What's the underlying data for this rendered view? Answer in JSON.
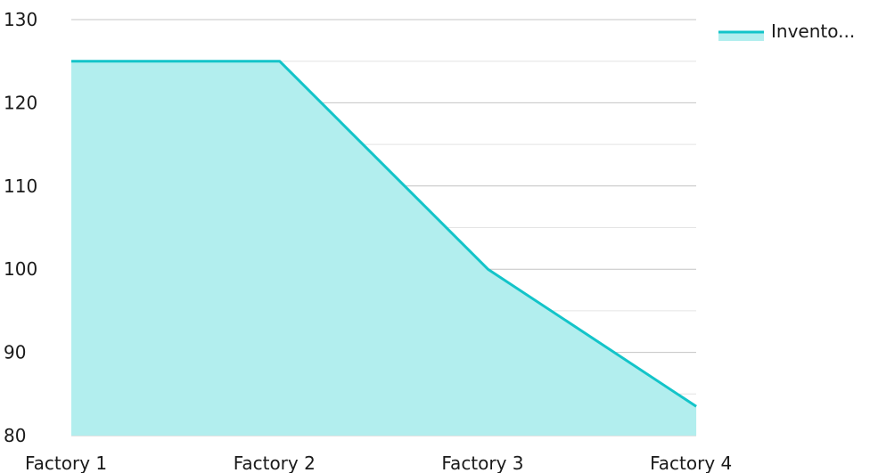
{
  "chart_data": {
    "type": "area",
    "categories": [
      "Factory 1",
      "Factory 2",
      "Factory 3",
      "Factory 4"
    ],
    "series": [
      {
        "name": "Invento...",
        "values": [
          125,
          125,
          100,
          83.5
        ],
        "line_color": "#13c4c9",
        "fill_color": "#b2eeee"
      }
    ],
    "ylim": [
      80,
      130
    ],
    "y_ticks": [
      80,
      90,
      100,
      110,
      120,
      130
    ],
    "minor_grid_step": 5,
    "grid": true,
    "legend_position": "top-right",
    "title": "",
    "xlabel": "",
    "ylabel": ""
  }
}
